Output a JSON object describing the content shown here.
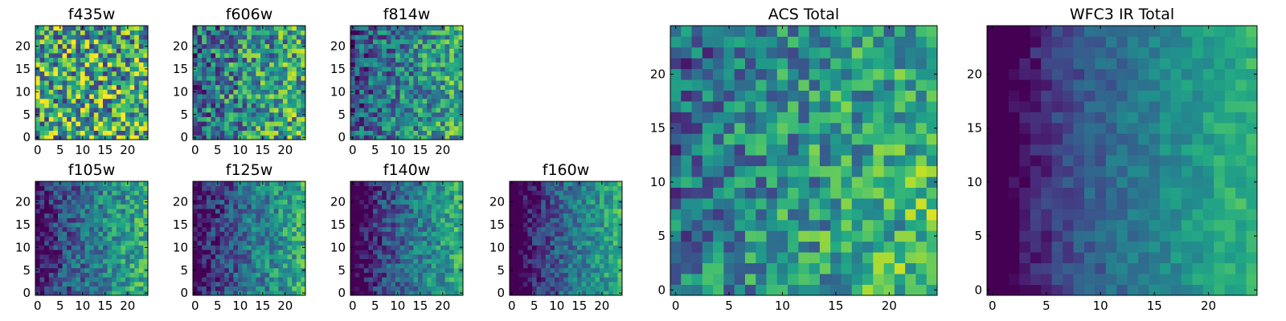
{
  "colormap": "viridis",
  "chart_data": [
    {
      "type": "heatmap",
      "title": "f435w",
      "grid_size": 25,
      "x_ticks": [
        "0",
        "5",
        "10",
        "15",
        "20"
      ],
      "y_ticks": [
        "0",
        "5",
        "10",
        "15",
        "20"
      ],
      "xlim": [
        -0.5,
        24.5
      ],
      "ylim": [
        -0.5,
        24.5
      ],
      "value_range": [
        0,
        1
      ],
      "grid": false,
      "pattern": "noisy, roughly uniform, mean high",
      "gradient": {
        "base": 0.6,
        "x": 0.0,
        "y": 0.0,
        "dark_left": 0.0,
        "noise": 0.45
      }
    },
    {
      "type": "heatmap",
      "title": "f606w",
      "grid_size": 25,
      "x_ticks": [
        "0",
        "5",
        "10",
        "15",
        "20"
      ],
      "y_ticks": [
        "0",
        "5",
        "10",
        "15",
        "20"
      ],
      "xlim": [
        -0.5,
        24.5
      ],
      "ylim": [
        -0.5,
        24.5
      ],
      "value_range": [
        0,
        1
      ],
      "grid": false,
      "pattern": "noisy, brighter to the right",
      "gradient": {
        "base": 0.5,
        "x": 0.22,
        "y": -0.02,
        "dark_left": 0.05,
        "noise": 0.36
      }
    },
    {
      "type": "heatmap",
      "title": "f814w",
      "grid_size": 25,
      "x_ticks": [
        "0",
        "5",
        "10",
        "15",
        "20"
      ],
      "y_ticks": [
        "0",
        "5",
        "10",
        "15",
        "20"
      ],
      "xlim": [
        -0.5,
        24.5
      ],
      "ylim": [
        -0.5,
        24.5
      ],
      "value_range": [
        0,
        1
      ],
      "grid": false,
      "pattern": "noisy, brighter to the right",
      "gradient": {
        "base": 0.45,
        "x": 0.3,
        "y": -0.02,
        "dark_left": 0.08,
        "noise": 0.3
      }
    },
    {
      "type": "heatmap",
      "title": "f105w",
      "grid_size": 25,
      "x_ticks": [
        "0",
        "5",
        "10",
        "15",
        "20"
      ],
      "y_ticks": [
        "0",
        "5",
        "10",
        "15",
        "20"
      ],
      "xlim": [
        -0.5,
        24.5
      ],
      "ylim": [
        -0.5,
        24.5
      ],
      "value_range": [
        0,
        1
      ],
      "grid": false,
      "pattern": "smooth, dark lower-left, bright right edge",
      "gradient": {
        "base": 0.4,
        "x": 0.45,
        "y": 0.0,
        "dark_left": 0.18,
        "noise": 0.22
      }
    },
    {
      "type": "heatmap",
      "title": "f125w",
      "grid_size": 25,
      "x_ticks": [
        "0",
        "5",
        "10",
        "15",
        "20"
      ],
      "y_ticks": [
        "0",
        "5",
        "10",
        "15",
        "20"
      ],
      "xlim": [
        -0.5,
        24.5
      ],
      "ylim": [
        -0.5,
        24.5
      ],
      "value_range": [
        0,
        1
      ],
      "grid": false,
      "pattern": "smooth, dark lower-left, bright right edge",
      "gradient": {
        "base": 0.38,
        "x": 0.48,
        "y": 0.0,
        "dark_left": 0.2,
        "noise": 0.22
      }
    },
    {
      "type": "heatmap",
      "title": "f140w",
      "grid_size": 25,
      "x_ticks": [
        "0",
        "5",
        "10",
        "15",
        "20"
      ],
      "y_ticks": [
        "0",
        "5",
        "10",
        "15",
        "20"
      ],
      "xlim": [
        -0.5,
        24.5
      ],
      "ylim": [
        -0.5,
        24.5
      ],
      "value_range": [
        0,
        1
      ],
      "grid": false,
      "pattern": "smooth, dark left column, bright right",
      "gradient": {
        "base": 0.36,
        "x": 0.52,
        "y": 0.0,
        "dark_left": 0.28,
        "noise": 0.2
      }
    },
    {
      "type": "heatmap",
      "title": "f160w",
      "grid_size": 25,
      "x_ticks": [
        "0",
        "5",
        "10",
        "15",
        "20"
      ],
      "y_ticks": [
        "0",
        "5",
        "10",
        "15",
        "20"
      ],
      "xlim": [
        -0.5,
        24.5
      ],
      "ylim": [
        -0.5,
        24.5
      ],
      "value_range": [
        0,
        1
      ],
      "grid": false,
      "pattern": "smooth, dark left column, bright right",
      "gradient": {
        "base": 0.35,
        "x": 0.55,
        "y": 0.0,
        "dark_left": 0.32,
        "noise": 0.18
      }
    },
    {
      "type": "heatmap",
      "title": "ACS Total",
      "grid_size": 25,
      "x_ticks": [
        "0",
        "5",
        "10",
        "15",
        "20"
      ],
      "y_ticks": [
        "0",
        "5",
        "10",
        "15",
        "20"
      ],
      "xlim": [
        -0.5,
        24.5
      ],
      "ylim": [
        -0.5,
        24.5
      ],
      "value_range": [
        0,
        1
      ],
      "grid": false,
      "pattern": "noisy, bright lower-right",
      "gradient": {
        "base": 0.52,
        "x": 0.26,
        "y": -0.08,
        "dark_left": 0.05,
        "noise": 0.28
      }
    },
    {
      "type": "heatmap",
      "title": "WFC3 IR Total",
      "grid_size": 25,
      "x_ticks": [
        "0",
        "5",
        "10",
        "15",
        "20"
      ],
      "y_ticks": [
        "0",
        "5",
        "10",
        "15",
        "20"
      ],
      "xlim": [
        -0.5,
        24.5
      ],
      "ylim": [
        -0.5,
        24.5
      ],
      "value_range": [
        0,
        1
      ],
      "grid": false,
      "pattern": "smooth, dark left edge, bright right",
      "gradient": {
        "base": 0.38,
        "x": 0.55,
        "y": 0.0,
        "dark_left": 0.3,
        "noise": 0.1
      }
    }
  ]
}
